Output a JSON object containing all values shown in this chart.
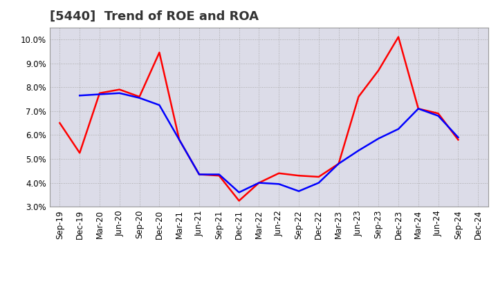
{
  "title": "[5440]  Trend of ROE and ROA",
  "x_labels": [
    "Sep-19",
    "Dec-19",
    "Mar-20",
    "Jun-20",
    "Sep-20",
    "Dec-20",
    "Mar-21",
    "Jun-21",
    "Sep-21",
    "Dec-21",
    "Mar-22",
    "Jun-22",
    "Sep-22",
    "Dec-22",
    "Mar-23",
    "Jun-23",
    "Sep-23",
    "Dec-23",
    "Mar-24",
    "Jun-24",
    "Sep-24",
    "Dec-24"
  ],
  "roe": [
    6.5,
    5.25,
    7.75,
    7.9,
    7.6,
    9.45,
    5.8,
    4.35,
    4.3,
    3.25,
    4.0,
    4.4,
    4.3,
    4.25,
    4.8,
    7.6,
    8.7,
    10.1,
    7.1,
    6.9,
    5.8,
    null
  ],
  "roa": [
    null,
    7.65,
    7.7,
    7.75,
    7.55,
    7.25,
    5.8,
    4.35,
    4.35,
    3.6,
    4.0,
    3.95,
    3.65,
    4.0,
    4.8,
    5.35,
    5.85,
    6.25,
    7.1,
    6.8,
    5.9,
    null
  ],
  "roe_color": "#ff0000",
  "roa_color": "#0000ff",
  "ylim": [
    3.0,
    10.5
  ],
  "yticks": [
    3.0,
    4.0,
    5.0,
    6.0,
    7.0,
    8.0,
    9.0,
    10.0
  ],
  "bg_color": "#ffffff",
  "plot_bg_color": "#dcdce8",
  "linewidth": 1.8,
  "title_fontsize": 13,
  "tick_fontsize": 8.5,
  "legend_fontsize": 10
}
